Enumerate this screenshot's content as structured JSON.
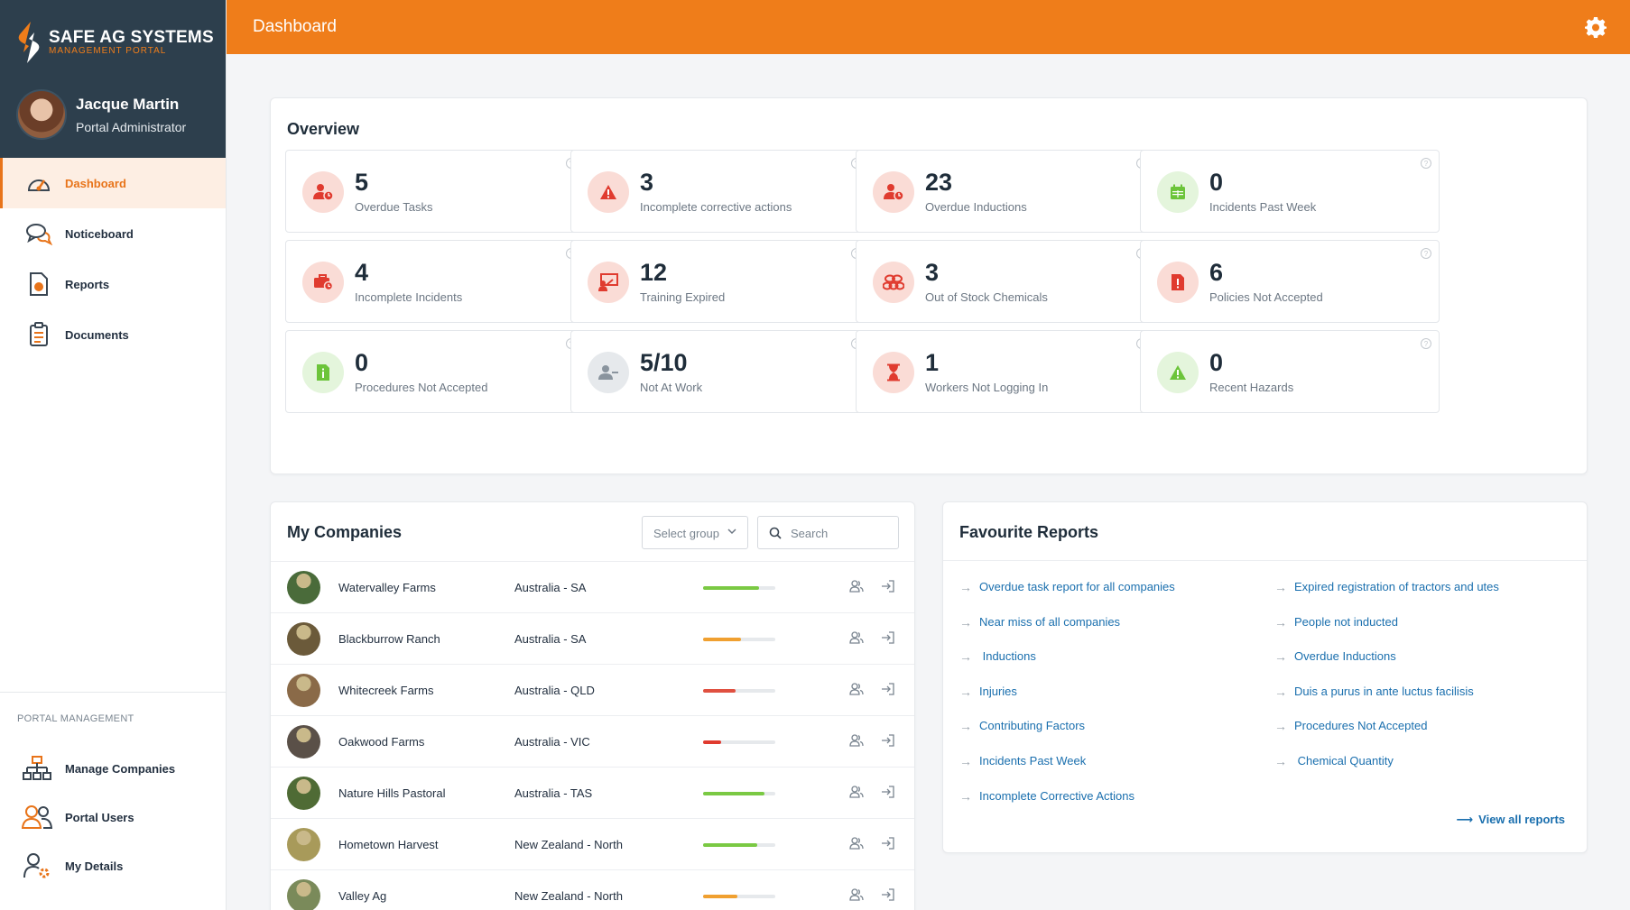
{
  "brand": {
    "title": "SAFE AG SYSTEMS",
    "subtitle": "MANAGEMENT PORTAL",
    "accent": "#ef7d1a",
    "sidebar_head": "#2d3f4d"
  },
  "user": {
    "name": "Jacque Martin",
    "role": "Portal Administrator"
  },
  "nav": [
    {
      "label": "Dashboard",
      "icon": "speedometer-icon",
      "active": true
    },
    {
      "label": "Noticeboard",
      "icon": "chat-bubbles-icon"
    },
    {
      "label": "Reports",
      "icon": "report-icon"
    },
    {
      "label": "Documents",
      "icon": "clipboard-icon"
    }
  ],
  "portal_management": {
    "title": "PORTAL MANAGEMENT",
    "items": [
      {
        "label": "Manage Companies",
        "icon": "org-chart-icon"
      },
      {
        "label": "Portal Users",
        "icon": "users-icon"
      },
      {
        "label": "My Details",
        "icon": "user-settings-icon"
      }
    ]
  },
  "topbar": {
    "title": "Dashboard",
    "icon": "gear-icon"
  },
  "overview": {
    "title": "Overview",
    "tiles": [
      {
        "value": "5",
        "label": "Overdue Tasks",
        "icon": "user-clock-icon",
        "tone": "red"
      },
      {
        "value": "3",
        "label": "Incomplete corrective actions",
        "icon": "warning-icon",
        "tone": "red"
      },
      {
        "value": "23",
        "label": "Overdue Inductions",
        "icon": "user-clock-icon",
        "tone": "red"
      },
      {
        "value": "0",
        "label": "Incidents Past Week",
        "icon": "calendar-icon",
        "tone": "green"
      },
      {
        "value": "4",
        "label": "Incomplete Incidents",
        "icon": "toolbox-icon",
        "tone": "red"
      },
      {
        "value": "12",
        "label": "Training Expired",
        "icon": "presentation-icon",
        "tone": "red"
      },
      {
        "value": "3",
        "label": "Out of Stock Chemicals",
        "icon": "barrels-icon",
        "tone": "red"
      },
      {
        "value": "6",
        "label": "Policies Not Accepted",
        "icon": "document-alert-icon",
        "tone": "red"
      },
      {
        "value": "0",
        "label": "Procedures Not Accepted",
        "icon": "document-info-icon",
        "tone": "green"
      },
      {
        "value": "5/10",
        "label": "Not At Work",
        "icon": "user-minus-icon",
        "tone": "gray"
      },
      {
        "value": "1",
        "label": "Workers Not Logging In",
        "icon": "hourglass-icon",
        "tone": "red"
      },
      {
        "value": "0",
        "label": "Recent Hazards",
        "icon": "hazard-icon",
        "tone": "green"
      }
    ]
  },
  "companies": {
    "title": "My Companies",
    "select_placeholder": "Select group",
    "search_placeholder": "Search",
    "rows": [
      {
        "name": "Watervalley Farms",
        "region": "Australia - SA",
        "progress": 0.78,
        "color": "#7ac943",
        "thumb": "#4a6b3a"
      },
      {
        "name": "Blackburrow Ranch",
        "region": "Australia - SA",
        "progress": 0.52,
        "color": "#f0a030",
        "thumb": "#6b5a3a"
      },
      {
        "name": "Whitecreek Farms",
        "region": "Australia - QLD",
        "progress": 0.45,
        "color": "#e05040",
        "thumb": "#8a6a48"
      },
      {
        "name": "Oakwood Farms",
        "region": "Australia - VIC",
        "progress": 0.25,
        "color": "#e03b2f",
        "thumb": "#5a5048"
      },
      {
        "name": "Nature Hills Pastoral",
        "region": "Australia - TAS",
        "progress": 0.85,
        "color": "#7ac943",
        "thumb": "#4f6b35"
      },
      {
        "name": "Hometown Harvest",
        "region": "New Zealand - North",
        "progress": 0.75,
        "color": "#7ac943",
        "thumb": "#a89a5a"
      },
      {
        "name": "Valley Ag",
        "region": "New Zealand - North",
        "progress": 0.48,
        "color": "#f0a030",
        "thumb": "#7a8a5a"
      }
    ]
  },
  "favourites": {
    "title": "Favourite Reports",
    "left": [
      "Overdue task report for all companies",
      "Near miss of all companies",
      " Inductions",
      "Injuries",
      "Contributing Factors",
      "Incidents Past Week",
      "Incomplete Corrective Actions"
    ],
    "right": [
      "Expired registration of tractors and utes",
      "People not inducted",
      "Overdue Inductions",
      "Duis a purus in ante luctus facilisis",
      "Procedures Not Accepted",
      " Chemical Quantity"
    ],
    "view_all": "View all reports"
  }
}
